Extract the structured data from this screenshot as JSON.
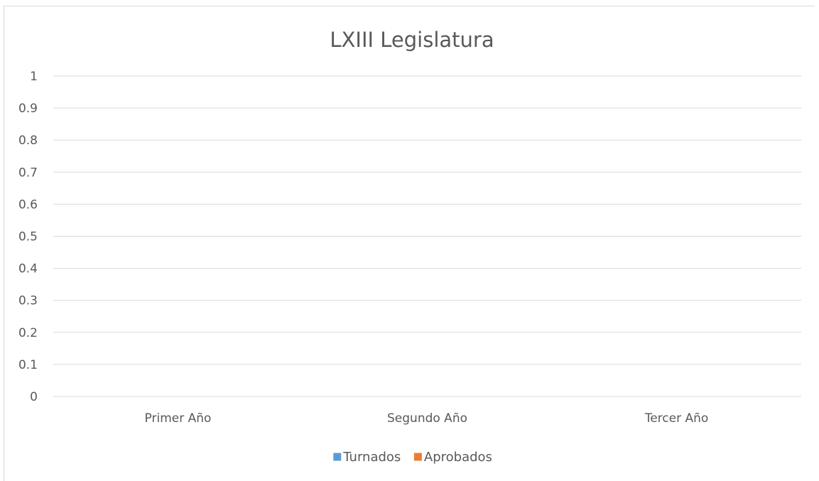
{
  "chart_data": {
    "type": "bar",
    "title": "LXIII Legislatura",
    "xlabel": "",
    "ylabel": "",
    "categories": [
      "Primer Año",
      "Segundo Año",
      "Tercer Año"
    ],
    "series": [
      {
        "name": "Turnados",
        "values": [
          0,
          0,
          0
        ],
        "color": "#5b9bd5"
      },
      {
        "name": "Aprobados",
        "values": [
          0,
          0,
          0
        ],
        "color": "#ed7d31"
      }
    ],
    "ylim": [
      0,
      1
    ],
    "yticks": [
      "0",
      "0.1",
      "0.2",
      "0.3",
      "0.4",
      "0.5",
      "0.6",
      "0.7",
      "0.8",
      "0.9",
      "1"
    ],
    "grid": true,
    "gridColor": "#d9d9d9",
    "legend": "bottom"
  }
}
